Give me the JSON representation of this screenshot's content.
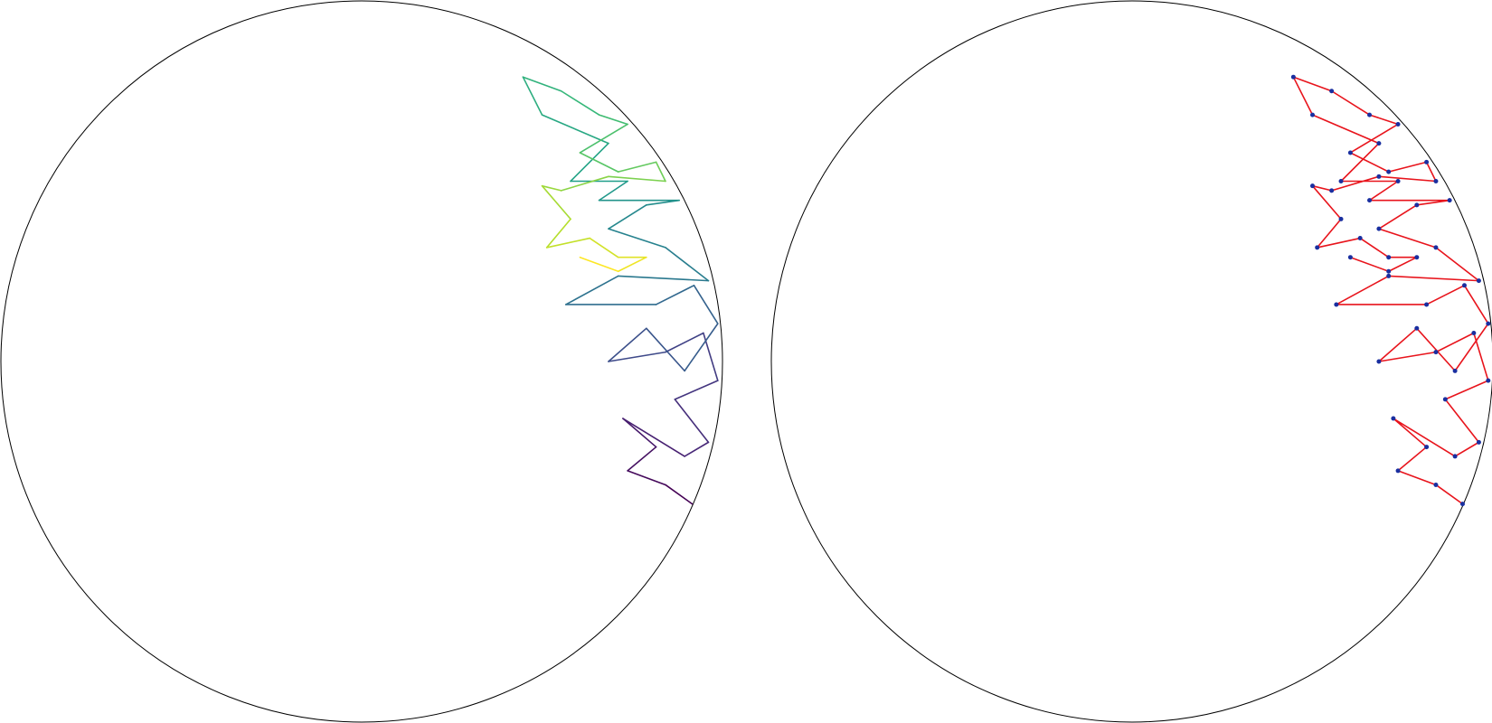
{
  "chart_data": [
    {
      "type": "line",
      "colormap": "viridis",
      "xlim": [
        -1,
        1
      ],
      "ylim": [
        -1,
        1
      ],
      "x": [
        0.916,
        0.842,
        0.737,
        0.816,
        0.724,
        0.895,
        0.961,
        0.868,
        0.987,
        0.947,
        0.842,
        0.684,
        0.789,
        0.895,
        0.987,
        0.921,
        0.816,
        0.566,
        0.711,
        0.961,
        0.842,
        0.684,
        0.789,
        0.88,
        0.658,
        0.737,
        0.579,
        0.684,
        0.5,
        0.447,
        0.553,
        0.658,
        0.737,
        0.605,
        0.711,
        0.816,
        0.842,
        0.684,
        0.553,
        0.5,
        0.579,
        0.513,
        0.632,
        0.711,
        0.789,
        0.711,
        0.605
      ],
      "y": [
        -0.395,
        -0.342,
        -0.303,
        -0.237,
        -0.158,
        -0.263,
        -0.224,
        -0.105,
        -0.053,
        0.079,
        0.026,
        0,
        0.092,
        -0.026,
        0.105,
        0.211,
        0.158,
        0.158,
        0.237,
        0.224,
        0.316,
        0.368,
        0.434,
        0.447,
        0.447,
        0.5,
        0.5,
        0.605,
        0.684,
        0.789,
        0.75,
        0.684,
        0.658,
        0.579,
        0.526,
        0.553,
        0.5,
        0.513,
        0.474,
        0.487,
        0.395,
        0.316,
        0.342,
        0.289,
        0.289,
        0.25,
        0.289
      ]
    },
    {
      "type": "line",
      "color": "#e8141c",
      "marker_color": "#1a2fa0",
      "xlim": [
        -1,
        1
      ],
      "ylim": [
        -1,
        1
      ],
      "x": [
        0.916,
        0.842,
        0.737,
        0.816,
        0.724,
        0.895,
        0.961,
        0.868,
        0.987,
        0.947,
        0.842,
        0.684,
        0.789,
        0.895,
        0.987,
        0.921,
        0.816,
        0.566,
        0.711,
        0.961,
        0.842,
        0.684,
        0.789,
        0.88,
        0.658,
        0.737,
        0.579,
        0.684,
        0.5,
        0.447,
        0.553,
        0.658,
        0.737,
        0.605,
        0.711,
        0.816,
        0.842,
        0.684,
        0.553,
        0.5,
        0.579,
        0.513,
        0.632,
        0.711,
        0.789,
        0.711,
        0.605
      ],
      "y": [
        -0.395,
        -0.342,
        -0.303,
        -0.237,
        -0.158,
        -0.263,
        -0.224,
        -0.105,
        -0.053,
        0.079,
        0.026,
        0,
        0.092,
        -0.026,
        0.105,
        0.211,
        0.158,
        0.158,
        0.237,
        0.224,
        0.316,
        0.368,
        0.434,
        0.447,
        0.447,
        0.5,
        0.5,
        0.605,
        0.684,
        0.789,
        0.75,
        0.684,
        0.658,
        0.579,
        0.526,
        0.553,
        0.5,
        0.513,
        0.474,
        0.487,
        0.395,
        0.316,
        0.342,
        0.289,
        0.289,
        0.25,
        0.289
      ]
    }
  ]
}
